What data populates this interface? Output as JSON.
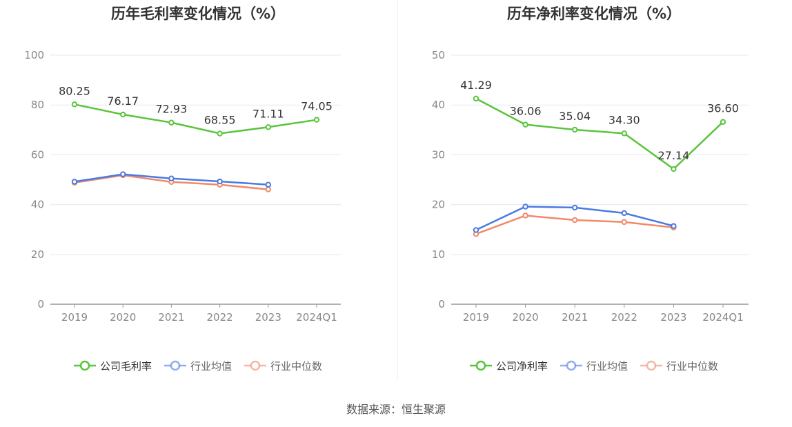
{
  "chart_data": [
    {
      "type": "line",
      "title": "历年毛利率变化情况（%）",
      "categories": [
        "2019",
        "2020",
        "2021",
        "2022",
        "2023",
        "2024Q1"
      ],
      "ylim": [
        0,
        100
      ],
      "yticks": [
        0,
        20,
        40,
        60,
        80,
        100
      ],
      "grid": true,
      "legend_position": "bottom",
      "series": [
        {
          "name": "公司毛利率",
          "color": "#5ac43c",
          "values": [
            80.25,
            76.17,
            72.93,
            68.55,
            71.11,
            74.05
          ],
          "labels": [
            "80.25",
            "76.17",
            "72.93",
            "68.55",
            "71.11",
            "74.05"
          ]
        },
        {
          "name": "行业均值",
          "color": "#4a7ae0",
          "values": [
            49.2,
            52.2,
            50.5,
            49.3,
            48.0,
            null
          ]
        },
        {
          "name": "行业中位数",
          "color": "#f0896a",
          "values": [
            48.8,
            51.8,
            49.1,
            48.0,
            46.1,
            null
          ]
        }
      ]
    },
    {
      "type": "line",
      "title": "历年净利率变化情况（%）",
      "categories": [
        "2019",
        "2020",
        "2021",
        "2022",
        "2023",
        "2024Q1"
      ],
      "ylim": [
        0,
        50
      ],
      "yticks": [
        0,
        10,
        20,
        30,
        40,
        50
      ],
      "grid": true,
      "legend_position": "bottom",
      "series": [
        {
          "name": "公司净利率",
          "color": "#5ac43c",
          "values": [
            41.29,
            36.06,
            35.04,
            34.3,
            27.14,
            36.6
          ],
          "labels": [
            "41.29",
            "36.06",
            "35.04",
            "34.30",
            "27.14",
            "36.60"
          ]
        },
        {
          "name": "行业均值",
          "color": "#4a7ae0",
          "values": [
            14.9,
            19.6,
            19.4,
            18.3,
            15.7,
            null
          ]
        },
        {
          "name": "行业中位数",
          "color": "#f0896a",
          "values": [
            14.1,
            17.8,
            16.9,
            16.5,
            15.4,
            null
          ]
        }
      ]
    }
  ],
  "source_text": "数据来源：恒生聚源"
}
